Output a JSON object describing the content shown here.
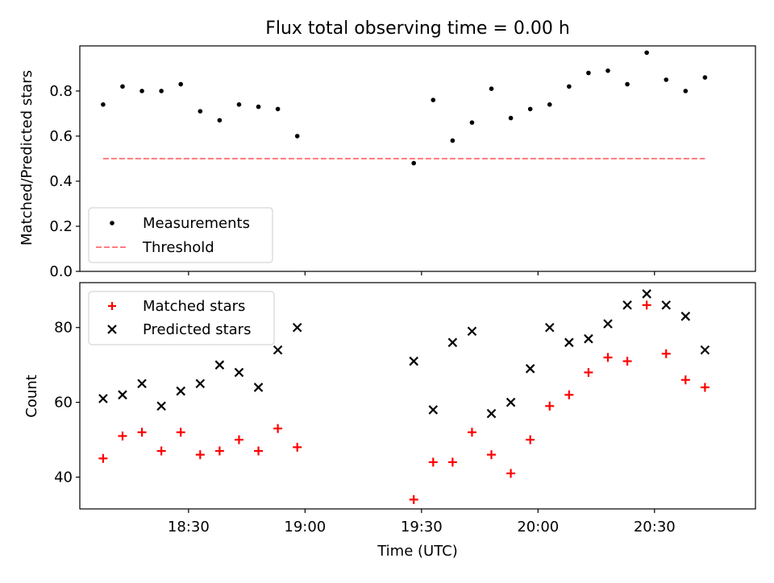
{
  "chart_data": [
    {
      "type": "scatter",
      "title": "Flux total observing time = 0.00 h",
      "xlabel": "",
      "ylabel": "Matched/Predicted stars",
      "ylim": [
        0,
        1.0
      ],
      "yticks": [
        0.0,
        0.2,
        0.4,
        0.6,
        0.8
      ],
      "ytick_labels": [
        "0.0",
        "0.2",
        "0.4",
        "0.6",
        "0.8"
      ],
      "xlim": [
        "18:02",
        "20:56"
      ],
      "legend_placement": "lower-left",
      "series": [
        {
          "name": "Measurements",
          "marker": "dot",
          "color": "#000000",
          "x": [
            "18:08",
            "18:13",
            "18:18",
            "18:23",
            "18:28",
            "18:33",
            "18:38",
            "18:43",
            "18:48",
            "18:53",
            "18:58",
            "19:28",
            "19:33",
            "19:38",
            "19:43",
            "19:48",
            "19:53",
            "19:58",
            "20:03",
            "20:08",
            "20:13",
            "20:18",
            "20:23",
            "20:28",
            "20:33",
            "20:38",
            "20:43"
          ],
          "values": [
            0.74,
            0.82,
            0.8,
            0.8,
            0.83,
            0.71,
            0.67,
            0.74,
            0.73,
            0.72,
            0.6,
            0.48,
            0.76,
            0.58,
            0.66,
            0.81,
            0.68,
            0.72,
            0.74,
            0.82,
            0.88,
            0.89,
            0.83,
            0.97,
            0.85,
            0.8,
            0.86
          ]
        },
        {
          "name": "Threshold",
          "marker": "dashed-line",
          "color": "#ff7f7f",
          "x": [
            "18:08",
            "20:43"
          ],
          "values": [
            0.5,
            0.5
          ]
        }
      ]
    },
    {
      "type": "scatter",
      "title": "",
      "xlabel": "Time (UTC)",
      "ylabel": "Count",
      "ylim": [
        31.5,
        92
      ],
      "yticks": [
        40,
        60,
        80
      ],
      "ytick_labels": [
        "40",
        "60",
        "80"
      ],
      "xlim": [
        "18:02",
        "20:56"
      ],
      "xticks": [
        "18:30",
        "19:00",
        "19:30",
        "20:00",
        "20:30"
      ],
      "xtick_labels": [
        "18:30",
        "19:00",
        "19:30",
        "20:00",
        "20:30"
      ],
      "legend_placement": "upper-left",
      "series": [
        {
          "name": "Matched stars",
          "marker": "plus",
          "color": "#ff0000",
          "x": [
            "18:08",
            "18:13",
            "18:18",
            "18:23",
            "18:28",
            "18:33",
            "18:38",
            "18:43",
            "18:48",
            "18:53",
            "18:58",
            "19:28",
            "19:33",
            "19:38",
            "19:43",
            "19:48",
            "19:53",
            "19:58",
            "20:03",
            "20:08",
            "20:13",
            "20:18",
            "20:23",
            "20:28",
            "20:33",
            "20:38",
            "20:43"
          ],
          "values": [
            45,
            51,
            52,
            47,
            52,
            46,
            47,
            50,
            47,
            53,
            48,
            34,
            44,
            44,
            52,
            46,
            41,
            50,
            59,
            62,
            68,
            72,
            71,
            86,
            73,
            66,
            64
          ]
        },
        {
          "name": "Predicted stars",
          "marker": "x",
          "color": "#000000",
          "x": [
            "18:08",
            "18:13",
            "18:18",
            "18:23",
            "18:28",
            "18:33",
            "18:38",
            "18:43",
            "18:48",
            "18:53",
            "18:58",
            "19:28",
            "19:33",
            "19:38",
            "19:43",
            "19:48",
            "19:53",
            "19:58",
            "20:03",
            "20:08",
            "20:13",
            "20:18",
            "20:23",
            "20:28",
            "20:33",
            "20:38",
            "20:43"
          ],
          "values": [
            61,
            62,
            65,
            59,
            63,
            65,
            70,
            68,
            64,
            74,
            80,
            71,
            58,
            76,
            79,
            57,
            60,
            69,
            80,
            76,
            77,
            81,
            86,
            89,
            86,
            83,
            74
          ]
        }
      ]
    }
  ]
}
